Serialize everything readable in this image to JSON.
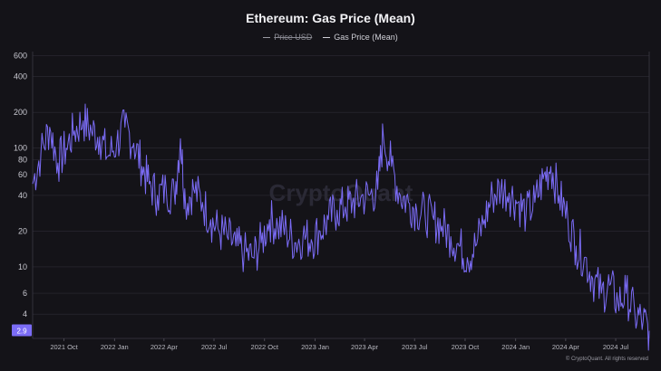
{
  "chart_data": {
    "type": "line",
    "title": "Ethereum: Gas Price (Mean)",
    "legend": [
      {
        "name": "Price USD",
        "color": "#9a9aa3",
        "hidden": true
      },
      {
        "name": "Gas Price (Mean)",
        "color": "#7b6cf6",
        "hidden": false
      }
    ],
    "y_scale": "log",
    "ylim": [
      2.5,
      650
    ],
    "y_ticks": [
      "600",
      "400",
      "200",
      "100",
      "80",
      "60",
      "40",
      "20",
      "10",
      "6",
      "4"
    ],
    "y_tick_values": [
      600,
      400,
      200,
      100,
      80,
      60,
      40,
      20,
      10,
      6,
      4
    ],
    "current_value_label": "2.9",
    "xlim": [
      "2021-08-05",
      "2024-08-31"
    ],
    "x_ticks": [
      "2021 Oct",
      "2022 Jan",
      "2022 Apr",
      "2022 Jul",
      "2022 Oct",
      "2023 Jan",
      "2023 Apr",
      "2023 Jul",
      "2023 Oct",
      "2024 Jan",
      "2024 Apr",
      "2024 Jul"
    ],
    "x_tick_dates": [
      "2021-10-01",
      "2022-01-01",
      "2022-04-01",
      "2022-07-01",
      "2022-10-01",
      "2023-01-01",
      "2023-04-01",
      "2023-07-01",
      "2023-10-01",
      "2024-01-01",
      "2024-04-01",
      "2024-07-01"
    ],
    "series": [
      {
        "name": "Gas Price (Mean)",
        "color": "#7b6cf6",
        "points": [
          [
            "2021-08-05",
            50
          ],
          [
            "2021-08-20",
            90
          ],
          [
            "2021-09-05",
            150
          ],
          [
            "2021-09-20",
            75
          ],
          [
            "2021-10-05",
            100
          ],
          [
            "2021-10-20",
            140
          ],
          [
            "2021-11-05",
            170
          ],
          [
            "2021-11-20",
            140
          ],
          [
            "2021-12-05",
            125
          ],
          [
            "2021-12-20",
            85
          ],
          [
            "2022-01-05",
            110
          ],
          [
            "2022-01-20",
            150
          ],
          [
            "2022-02-05",
            110
          ],
          [
            "2022-02-20",
            70
          ],
          [
            "2022-03-05",
            50
          ],
          [
            "2022-03-20",
            40
          ],
          [
            "2022-04-05",
            45
          ],
          [
            "2022-04-20",
            40
          ],
          [
            "2022-05-01",
            120
          ],
          [
            "2022-05-10",
            35
          ],
          [
            "2022-05-25",
            45
          ],
          [
            "2022-06-10",
            35
          ],
          [
            "2022-06-25",
            25
          ],
          [
            "2022-07-10",
            20
          ],
          [
            "2022-07-25",
            18
          ],
          [
            "2022-08-10",
            15
          ],
          [
            "2022-08-25",
            13
          ],
          [
            "2022-09-10",
            12
          ],
          [
            "2022-09-25",
            16
          ],
          [
            "2022-10-10",
            25
          ],
          [
            "2022-10-25",
            22
          ],
          [
            "2022-11-10",
            20
          ],
          [
            "2022-11-25",
            16
          ],
          [
            "2022-12-10",
            18
          ],
          [
            "2022-12-25",
            17
          ],
          [
            "2023-01-10",
            20
          ],
          [
            "2023-01-25",
            25
          ],
          [
            "2023-02-10",
            30
          ],
          [
            "2023-02-25",
            32
          ],
          [
            "2023-03-10",
            35
          ],
          [
            "2023-03-25",
            38
          ],
          [
            "2023-04-10",
            40
          ],
          [
            "2023-04-25",
            45
          ],
          [
            "2023-05-05",
            130
          ],
          [
            "2023-05-20",
            70
          ],
          [
            "2023-06-05",
            40
          ],
          [
            "2023-06-20",
            35
          ],
          [
            "2023-07-05",
            30
          ],
          [
            "2023-07-20",
            28
          ],
          [
            "2023-08-05",
            25
          ],
          [
            "2023-08-20",
            22
          ],
          [
            "2023-09-05",
            18
          ],
          [
            "2023-09-20",
            15
          ],
          [
            "2023-10-05",
            12
          ],
          [
            "2023-10-20",
            15
          ],
          [
            "2023-11-05",
            25
          ],
          [
            "2023-11-20",
            40
          ],
          [
            "2023-12-05",
            45
          ],
          [
            "2023-12-20",
            42
          ],
          [
            "2024-01-05",
            35
          ],
          [
            "2024-01-20",
            28
          ],
          [
            "2024-02-05",
            35
          ],
          [
            "2024-02-20",
            55
          ],
          [
            "2024-03-05",
            70
          ],
          [
            "2024-03-20",
            40
          ],
          [
            "2024-04-05",
            25
          ],
          [
            "2024-04-20",
            15
          ],
          [
            "2024-05-05",
            12
          ],
          [
            "2024-05-20",
            8
          ],
          [
            "2024-06-05",
            6
          ],
          [
            "2024-06-20",
            7
          ],
          [
            "2024-07-05",
            5
          ],
          [
            "2024-07-20",
            6
          ],
          [
            "2024-08-05",
            4
          ],
          [
            "2024-08-20",
            3.5
          ],
          [
            "2024-08-31",
            2.9
          ]
        ]
      }
    ],
    "watermark": "CryptoQuant",
    "credit": "© CryptoQuant. All rights reserved"
  }
}
